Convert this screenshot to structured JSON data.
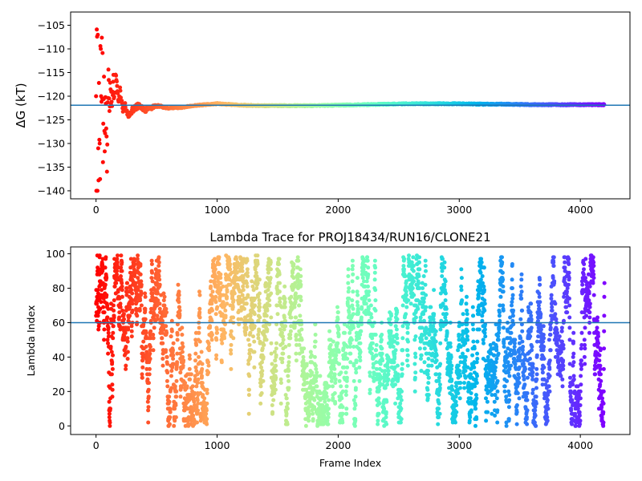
{
  "chart_data": [
    {
      "type": "scatter",
      "title": "",
      "xlabel": "",
      "ylabel": "ΔG (kT)",
      "ylabel_symbol": "ΔG",
      "ylabel_unit": "(kT)",
      "xlim": [
        -210,
        4410
      ],
      "ylim": [
        -141.7,
        -102.2
      ],
      "xticks": [
        0,
        1000,
        2000,
        3000,
        4000
      ],
      "yticks": [
        -105,
        -110,
        -115,
        -120,
        -125,
        -130,
        -135,
        -140
      ],
      "colormap": "rainbow (red → violet by frame index)",
      "reference_line": {
        "y": -121.9,
        "color": "#1f77b4"
      },
      "num_points": 4200,
      "series_summary": "Running free-energy estimate: scattered between -140 and -104 kT for the first ~100 frames, settling near -123 kT by ~400 frames, then converging to about -122 kT through frame 4200.",
      "x": [
        10,
        15,
        20,
        25,
        30,
        35,
        40,
        45,
        50,
        55,
        60,
        65,
        70,
        80,
        90,
        100,
        110,
        120,
        130,
        140,
        150,
        160,
        170,
        180,
        190,
        200,
        220,
        240,
        260,
        300,
        350,
        400,
        450,
        500,
        600,
        700,
        800,
        900,
        1000,
        1200,
        1400,
        1600,
        1800,
        2000,
        2200,
        2400,
        2600,
        2800,
        3000,
        3200,
        3400,
        3600,
        3800,
        4000,
        4200
      ],
      "y": [
        -140,
        -110,
        -130,
        -120,
        -104,
        -136,
        -125,
        -112,
        -117,
        -129,
        -122,
        -115,
        -131,
        -119,
        -135,
        -116,
        -121,
        -118,
        -124,
        -116,
        -120,
        -117,
        -118,
        -119,
        -121,
        -119,
        -123,
        -122,
        -124,
        -123,
        -122,
        -123,
        -122.5,
        -122,
        -122.5,
        -122.4,
        -122,
        -121.8,
        -121.6,
        -121.9,
        -122,
        -122,
        -122,
        -121.9,
        -121.8,
        -121.7,
        -121.6,
        -121.6,
        -121.6,
        -121.7,
        -121.7,
        -121.8,
        -121.8,
        -121.8,
        -121.8
      ]
    },
    {
      "type": "scatter",
      "title": "Lambda Trace for PROJ18434/RUN16/CLONE21",
      "xlabel": "Frame Index",
      "ylabel": "Lambda Index",
      "xlim": [
        -210,
        4410
      ],
      "ylim": [
        -5,
        104
      ],
      "xticks": [
        0,
        1000,
        2000,
        3000,
        4000
      ],
      "yticks": [
        0,
        20,
        40,
        60,
        80,
        100
      ],
      "colormap": "rainbow (red → violet by frame index)",
      "reference_line": {
        "y": 60,
        "color": "#1f77b4"
      },
      "num_points": 4200,
      "lambda_range": [
        0,
        99
      ],
      "series_summary": "Lambda index (0–99) of each frame from 0 to 4200, densely and roughly uniformly filling the full range."
    }
  ]
}
